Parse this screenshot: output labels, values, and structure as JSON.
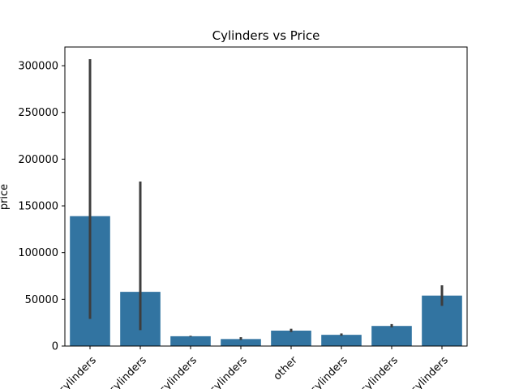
{
  "chart_data": {
    "type": "bar",
    "title": "Cylinders vs Price",
    "xlabel": "",
    "ylabel": "price",
    "categories": [
      "cylinders",
      "cylinders",
      "cylinders",
      "cylinders",
      "other",
      "cylinders",
      "cylinders",
      "cylinders"
    ],
    "values": [
      139000,
      58000,
      10500,
      7500,
      16500,
      12000,
      21500,
      54000
    ],
    "error_low": [
      29000,
      17000,
      10000,
      6500,
      15000,
      11000,
      20000,
      43000
    ],
    "error_high": [
      307000,
      176000,
      11000,
      9500,
      18500,
      13500,
      23500,
      65000
    ],
    "ylim": [
      0,
      320000
    ],
    "yticks": [
      0,
      50000,
      100000,
      150000,
      200000,
      250000,
      300000
    ],
    "bar_color": "#3274a1",
    "error_color": "#3d3d3d",
    "grid": false,
    "legend": "none"
  }
}
